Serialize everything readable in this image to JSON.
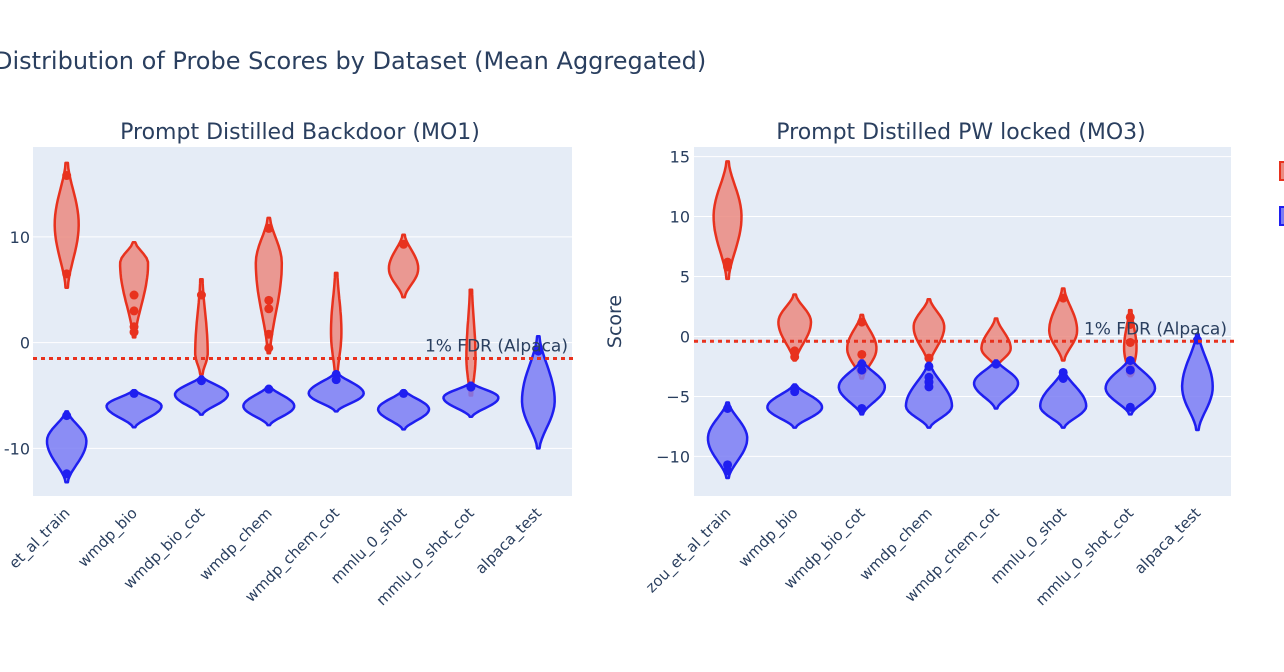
{
  "figure_title": "Distribution of Probe Scores by Dataset (Mean Aggregated)",
  "colors": {
    "red": "#e8321e",
    "red_fill": "#eb8a80",
    "blue": "#1f1ff0",
    "blue_fill": "#7b7cf4",
    "plot_bg": "#e5ecf6",
    "grid": "#ffffff",
    "text": "#2a3f5f"
  },
  "chart_data": [
    {
      "type": "violin",
      "title": "Prompt Distilled Backdoor (MO1)",
      "xlabel": "",
      "ylabel": "",
      "ylim": [
        -14.5,
        18.5
      ],
      "yticks": [
        -10,
        0,
        10
      ],
      "ytick_labels": [
        "-10",
        "0",
        "10"
      ],
      "categories": [
        "zou_et_al_train",
        "wmdp_bio",
        "wmdp_bio_cot",
        "wmdp_chem",
        "wmdp_chem_cot",
        "mmlu_0_shot",
        "mmlu_0_shot_cot",
        "alpaca_test"
      ],
      "category_labels": [
        "et_al_train",
        "wmdp_bio",
        "wmdp_bio_cot",
        "wmdp_chem",
        "wmdp_chem_cot",
        "mmlu_0_shot",
        "mmlu_0_shot_cot",
        "alpaca_test"
      ],
      "threshold": {
        "value": -1.5,
        "label": "1% FDR (Alpaca)"
      },
      "series": [
        {
          "name": "red",
          "violins": [
            {
              "category": "zou_et_al_train",
              "min": 5.2,
              "max": 17.0,
              "center": 11.2,
              "width": 0.32,
              "points": [
                15.8,
                6.5
              ]
            },
            {
              "category": "wmdp_bio",
              "min": 0.5,
              "max": 9.5,
              "center": 7.5,
              "width": 0.38,
              "points": [
                4.5,
                3.0,
                1.5,
                1.0
              ]
            },
            {
              "category": "wmdp_bio_cot",
              "min": -3.0,
              "max": 6.0,
              "center": -1.0,
              "width": 0.15,
              "points": [
                4.5
              ]
            },
            {
              "category": "wmdp_chem",
              "min": -1.0,
              "max": 11.8,
              "center": 7.5,
              "width": 0.35,
              "points": [
                10.8,
                4.0,
                3.2,
                0.8,
                -0.5
              ]
            },
            {
              "category": "wmdp_chem_cot",
              "min": -3.2,
              "max": 6.6,
              "center": 1.0,
              "width": 0.12,
              "points": []
            },
            {
              "category": "mmlu_0_shot",
              "min": 4.3,
              "max": 10.2,
              "center": 7.0,
              "width": 0.4,
              "points": [
                9.3
              ]
            },
            {
              "category": "mmlu_0_shot_cot",
              "min": -5.0,
              "max": 5.0,
              "center": -1.5,
              "width": 0.1,
              "points": []
            }
          ]
        },
        {
          "name": "blue",
          "violins": [
            {
              "category": "zou_et_al_train",
              "min": -13.2,
              "max": -6.5,
              "center": -9.3,
              "width": 0.55,
              "points": [
                -6.9,
                -12.4
              ]
            },
            {
              "category": "wmdp_bio",
              "min": -8.0,
              "max": -4.5,
              "center": -6.0,
              "width": 0.78,
              "points": [
                -4.8
              ]
            },
            {
              "category": "wmdp_bio_cot",
              "min": -6.8,
              "max": -3.2,
              "center": -4.9,
              "width": 0.75,
              "points": [
                -3.6
              ]
            },
            {
              "category": "wmdp_chem",
              "min": -7.8,
              "max": -4.1,
              "center": -6.0,
              "width": 0.72,
              "points": [
                -4.4
              ]
            },
            {
              "category": "wmdp_chem_cot",
              "min": -6.5,
              "max": -2.8,
              "center": -4.8,
              "width": 0.78,
              "points": [
                -3.0,
                -3.5
              ]
            },
            {
              "category": "mmlu_0_shot",
              "min": -8.2,
              "max": -4.5,
              "center": -6.3,
              "width": 0.72,
              "points": [
                -4.8
              ]
            },
            {
              "category": "mmlu_0_shot_cot",
              "min": -7.0,
              "max": -3.8,
              "center": -5.2,
              "width": 0.78,
              "points": [
                -4.2
              ]
            },
            {
              "category": "alpaca_test",
              "min": -10.0,
              "max": 0.6,
              "center": -5.5,
              "width": 0.45,
              "points": [
                -0.8
              ]
            }
          ]
        }
      ]
    },
    {
      "type": "violin",
      "title": "Prompt Distilled PW locked (MO3)",
      "xlabel": "",
      "ylabel": "Score",
      "ylim": [
        -13.3,
        15.8
      ],
      "yticks": [
        -10,
        -5,
        0,
        5,
        10,
        15
      ],
      "ytick_labels": [
        "−10",
        "−5",
        "0",
        "5",
        "10",
        "15"
      ],
      "categories": [
        "zou_et_al_train",
        "wmdp_bio",
        "wmdp_bio_cot",
        "wmdp_chem",
        "wmdp_chem_cot",
        "mmlu_0_shot",
        "mmlu_0_shot_cot",
        "alpaca_test"
      ],
      "category_labels": [
        "zou_et_al_train",
        "wmdp_bio",
        "wmdp_bio_cot",
        "wmdp_chem",
        "wmdp_chem_cot",
        "mmlu_0_shot",
        "mmlu_0_shot_cot",
        "alpaca_test"
      ],
      "threshold": {
        "value": -0.4,
        "label": "1% FDR (Alpaca)"
      },
      "series": [
        {
          "name": "red",
          "violins": [
            {
              "category": "zou_et_al_train",
              "min": 4.8,
              "max": 14.6,
              "center": 10.0,
              "width": 0.38,
              "points": [
                6.2,
                5.8
              ]
            },
            {
              "category": "wmdp_bio",
              "min": -2.0,
              "max": 3.5,
              "center": 1.2,
              "width": 0.45,
              "points": [
                -1.2,
                -1.7
              ]
            },
            {
              "category": "wmdp_bio_cot",
              "min": -3.5,
              "max": 1.8,
              "center": -1.0,
              "width": 0.4,
              "points": [
                1.2,
                -1.5
              ]
            },
            {
              "category": "wmdp_chem",
              "min": -2.2,
              "max": 3.1,
              "center": 0.8,
              "width": 0.42,
              "points": [
                -1.8
              ]
            },
            {
              "category": "wmdp_chem_cot",
              "min": -2.5,
              "max": 1.5,
              "center": -1.0,
              "width": 0.4,
              "points": []
            },
            {
              "category": "mmlu_0_shot",
              "min": -2.0,
              "max": 4.0,
              "center": 0.5,
              "width": 0.38,
              "points": [
                3.2
              ]
            },
            {
              "category": "mmlu_0_shot_cot",
              "min": -3.3,
              "max": 2.2,
              "center": -1.0,
              "width": 0.15,
              "points": [
                1.6,
                1.0,
                -0.5,
                -2.4,
                -3.0
              ]
            }
          ]
        },
        {
          "name": "blue",
          "violins": [
            {
              "category": "zou_et_al_train",
              "min": -11.8,
              "max": -5.5,
              "center": -8.5,
              "width": 0.55,
              "points": [
                -6.0,
                -10.7,
                -11.2
              ]
            },
            {
              "category": "wmdp_bio",
              "min": -7.6,
              "max": -4.0,
              "center": -5.9,
              "width": 0.78,
              "points": [
                -4.3,
                -4.6
              ]
            },
            {
              "category": "wmdp_bio_cot",
              "min": -6.5,
              "max": -2.0,
              "center": -4.2,
              "width": 0.65,
              "points": [
                -2.3,
                -2.8,
                -6.0
              ]
            },
            {
              "category": "wmdp_chem",
              "min": -7.6,
              "max": -2.2,
              "center": -5.8,
              "width": 0.65,
              "points": [
                -2.5,
                -3.4,
                -3.8,
                -4.2
              ]
            },
            {
              "category": "wmdp_chem_cot",
              "min": -6.0,
              "max": -2.0,
              "center": -3.9,
              "width": 0.62,
              "points": [
                -2.3
              ]
            },
            {
              "category": "mmlu_0_shot",
              "min": -7.6,
              "max": -2.8,
              "center": -5.8,
              "width": 0.65,
              "points": [
                -3.0,
                -3.5
              ]
            },
            {
              "category": "mmlu_0_shot_cot",
              "min": -6.5,
              "max": -1.8,
              "center": -4.3,
              "width": 0.7,
              "points": [
                -2.0,
                -2.8,
                -5.9
              ]
            },
            {
              "category": "alpaca_test",
              "min": -7.8,
              "max": 0.2,
              "center": -4.2,
              "width": 0.42,
              "points": [
                -0.3
              ]
            }
          ]
        }
      ]
    }
  ]
}
